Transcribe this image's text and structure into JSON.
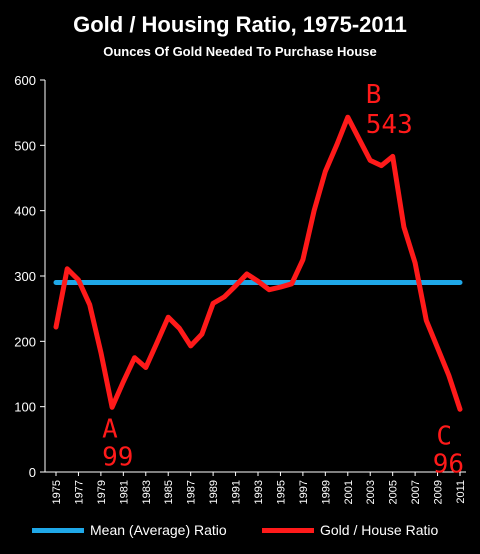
{
  "chart_data": {
    "type": "line",
    "title": "Gold / Housing Ratio, 1975-2011",
    "subtitle": "Ounces Of Gold Needed To Purchase House",
    "xlabel": "",
    "ylabel": "",
    "ylim": [
      0,
      600
    ],
    "yticks": [
      "0",
      "100",
      "200",
      "300",
      "400",
      "500",
      "600"
    ],
    "x_tick_labels": [
      "1975",
      "1977",
      "1979",
      "1981",
      "1983",
      "1985",
      "1987",
      "1989",
      "1991",
      "1993",
      "1995",
      "1997",
      "1999",
      "2001",
      "2003",
      "2005",
      "2007",
      "2009",
      "2011"
    ],
    "x": [
      1975,
      1976,
      1977,
      1978,
      1979,
      1980,
      1981,
      1982,
      1983,
      1984,
      1985,
      1986,
      1987,
      1988,
      1989,
      1990,
      1991,
      1992,
      1993,
      1994,
      1995,
      1996,
      1997,
      1998,
      1999,
      2000,
      2001,
      2002,
      2003,
      2004,
      2005,
      2006,
      2007,
      2008,
      2009,
      2010,
      2011
    ],
    "series": [
      {
        "name": "Mean (Average) Ratio",
        "color": "#1fa8e8",
        "values": [
          290,
          290,
          290,
          290,
          290,
          290,
          290,
          290,
          290,
          290,
          290,
          290,
          290,
          290,
          290,
          290,
          290,
          290,
          290,
          290,
          290,
          290,
          290,
          290,
          290,
          290,
          290,
          290,
          290,
          290,
          290,
          290,
          290,
          290,
          290,
          290,
          290
        ]
      },
      {
        "name": "Gold / House Ratio",
        "color": "#ff1a1a",
        "values": [
          222,
          311,
          294,
          256,
          183,
          99,
          138,
          175,
          160,
          198,
          237,
          220,
          193,
          211,
          258,
          268,
          285,
          303,
          292,
          279,
          283,
          288,
          325,
          400,
          460,
          500,
          543,
          510,
          477,
          469,
          483,
          375,
          320,
          232,
          190,
          148,
          96
        ]
      }
    ],
    "annotations": [
      {
        "letter": "A",
        "value": "99",
        "year": 1980
      },
      {
        "letter": "B",
        "value": "543",
        "year": 2001
      },
      {
        "letter": "C",
        "value": "96",
        "year": 2011
      }
    ],
    "legend_position": "bottom",
    "grid": false
  }
}
